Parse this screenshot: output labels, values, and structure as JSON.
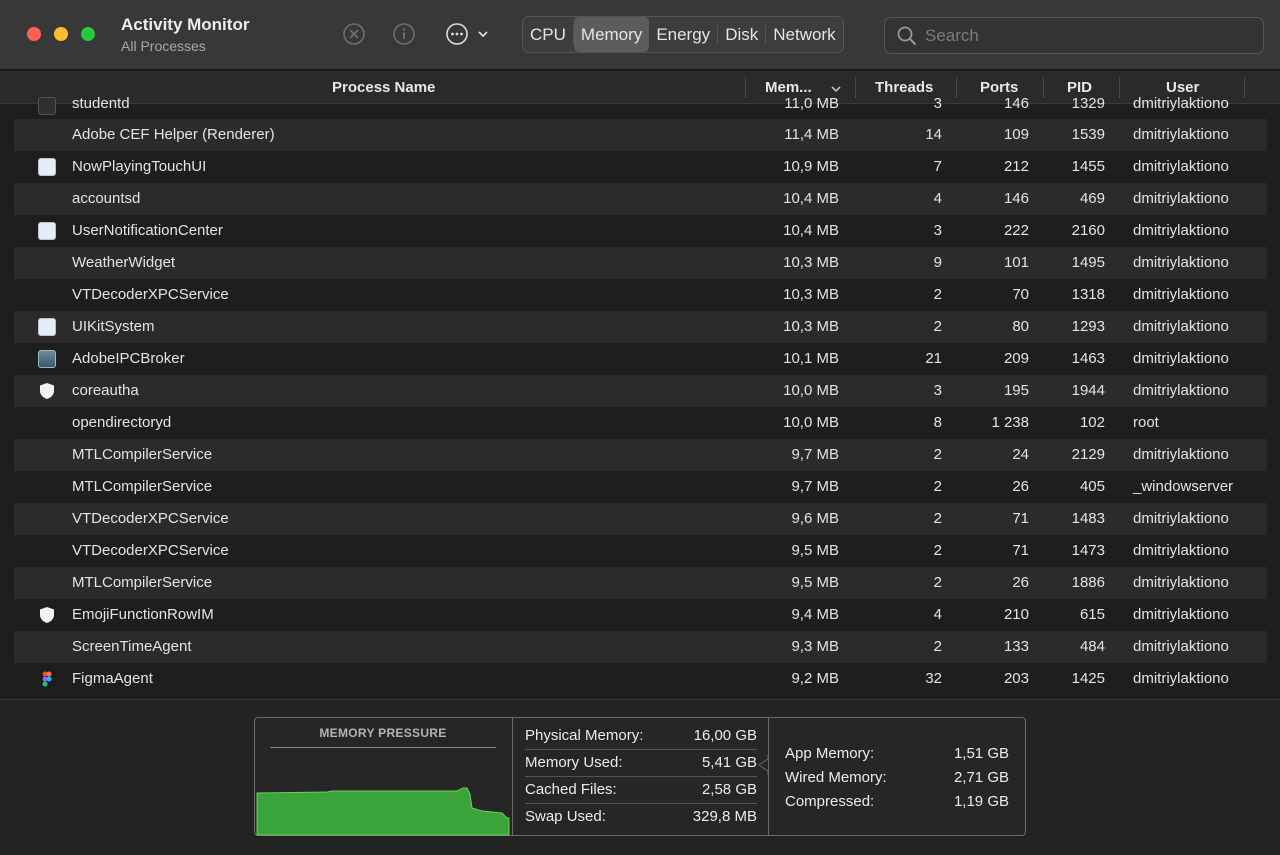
{
  "window": {
    "title": "Activity Monitor",
    "subtitle": "All Processes"
  },
  "toolbar": {
    "tabs": [
      {
        "label": "CPU",
        "active": false
      },
      {
        "label": "Memory",
        "active": true
      },
      {
        "label": "Energy",
        "active": false
      },
      {
        "label": "Disk",
        "active": false
      },
      {
        "label": "Network",
        "active": false
      }
    ],
    "search_placeholder": "Search",
    "icons": [
      "stop-process-icon",
      "inspect-info-icon",
      "more-actions-icon",
      "chevron-down-icon",
      "search-icon"
    ]
  },
  "table": {
    "columns": {
      "name": "Process Name",
      "memory": "Mem...",
      "threads": "Threads",
      "ports": "Ports",
      "pid": "PID",
      "user": "User"
    },
    "sort_column": "memory",
    "partial_top_row": {
      "name": "studentd",
      "memory": "11,0 MB",
      "threads": "3",
      "ports": "146",
      "pid": "1329",
      "user": "dmitriylaktiono"
    },
    "rows": [
      {
        "name": "Adobe CEF Helper (Renderer)",
        "memory": "11,4 MB",
        "threads": "14",
        "ports": "109",
        "pid": "1539",
        "user": "dmitriylaktiono",
        "icon": "none"
      },
      {
        "name": "NowPlayingTouchUI",
        "memory": "10,9 MB",
        "threads": "7",
        "ports": "212",
        "pid": "1455",
        "user": "dmitriylaktiono",
        "icon": "app"
      },
      {
        "name": "accountsd",
        "memory": "10,4 MB",
        "threads": "4",
        "ports": "146",
        "pid": "469",
        "user": "dmitriylaktiono",
        "icon": "none"
      },
      {
        "name": "UserNotificationCenter",
        "memory": "10,4 MB",
        "threads": "3",
        "ports": "222",
        "pid": "2160",
        "user": "dmitriylaktiono",
        "icon": "app"
      },
      {
        "name": "WeatherWidget",
        "memory": "10,3 MB",
        "threads": "9",
        "ports": "101",
        "pid": "1495",
        "user": "dmitriylaktiono",
        "icon": "none"
      },
      {
        "name": "VTDecoderXPCService",
        "memory": "10,3 MB",
        "threads": "2",
        "ports": "70",
        "pid": "1318",
        "user": "dmitriylaktiono",
        "icon": "none"
      },
      {
        "name": "UIKitSystem",
        "memory": "10,3 MB",
        "threads": "2",
        "ports": "80",
        "pid": "1293",
        "user": "dmitriylaktiono",
        "icon": "app"
      },
      {
        "name": "AdobeIPCBroker",
        "memory": "10,1 MB",
        "threads": "21",
        "ports": "209",
        "pid": "1463",
        "user": "dmitriylaktiono",
        "icon": "ipc"
      },
      {
        "name": "coreautha",
        "memory": "10,0 MB",
        "threads": "3",
        "ports": "195",
        "pid": "1944",
        "user": "dmitriylaktiono",
        "icon": "shield"
      },
      {
        "name": "opendirectoryd",
        "memory": "10,0 MB",
        "threads": "8",
        "ports": "1 238",
        "pid": "102",
        "user": "root",
        "icon": "none"
      },
      {
        "name": "MTLCompilerService",
        "memory": "9,7 MB",
        "threads": "2",
        "ports": "24",
        "pid": "2129",
        "user": "dmitriylaktiono",
        "icon": "none"
      },
      {
        "name": "MTLCompilerService",
        "memory": "9,7 MB",
        "threads": "2",
        "ports": "26",
        "pid": "405",
        "user": "_windowserver",
        "icon": "none"
      },
      {
        "name": "VTDecoderXPCService",
        "memory": "9,6 MB",
        "threads": "2",
        "ports": "71",
        "pid": "1483",
        "user": "dmitriylaktiono",
        "icon": "none"
      },
      {
        "name": "VTDecoderXPCService",
        "memory": "9,5 MB",
        "threads": "2",
        "ports": "71",
        "pid": "1473",
        "user": "dmitriylaktiono",
        "icon": "none"
      },
      {
        "name": "MTLCompilerService",
        "memory": "9,5 MB",
        "threads": "2",
        "ports": "26",
        "pid": "1886",
        "user": "dmitriylaktiono",
        "icon": "none"
      },
      {
        "name": "EmojiFunctionRowIM",
        "memory": "9,4 MB",
        "threads": "4",
        "ports": "210",
        "pid": "615",
        "user": "dmitriylaktiono",
        "icon": "shield"
      },
      {
        "name": "ScreenTimeAgent",
        "memory": "9,3 MB",
        "threads": "2",
        "ports": "133",
        "pid": "484",
        "user": "dmitriylaktiono",
        "icon": "none"
      },
      {
        "name": "FigmaAgent",
        "memory": "9,2 MB",
        "threads": "32",
        "ports": "203",
        "pid": "1425",
        "user": "dmitriylaktiono",
        "icon": "figma"
      }
    ]
  },
  "memory_panel": {
    "pressure_title": "MEMORY PRESSURE",
    "pressure_color": "#3aa33a",
    "stats_left": [
      {
        "label": "Physical Memory:",
        "value": "16,00 GB"
      },
      {
        "label": "Memory Used:",
        "value": "5,41 GB"
      },
      {
        "label": "Cached Files:",
        "value": "2,58 GB"
      },
      {
        "label": "Swap Used:",
        "value": "329,8 MB"
      }
    ],
    "stats_right": [
      {
        "label": "App Memory:",
        "value": "1,51 GB"
      },
      {
        "label": "Wired Memory:",
        "value": "2,71 GB"
      },
      {
        "label": "Compressed:",
        "value": "1,19 GB"
      }
    ]
  }
}
